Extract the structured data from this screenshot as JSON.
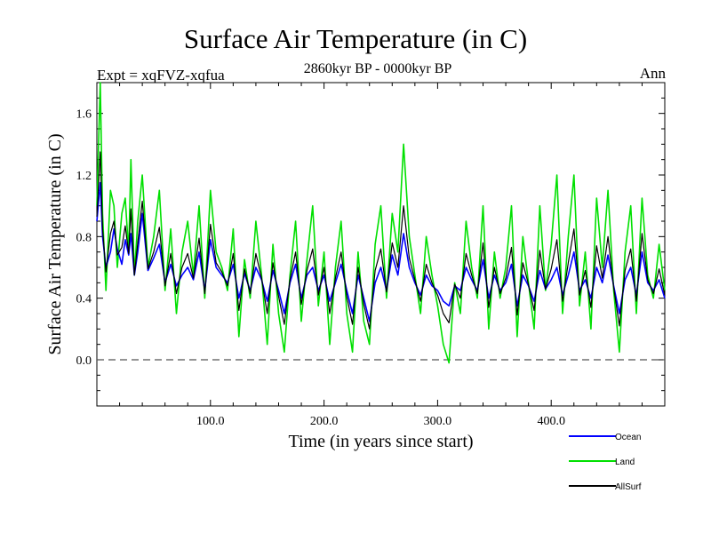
{
  "chart_data": {
    "type": "line",
    "title": "Surface Air Temperature (in C)",
    "subtitle": "2860kyr BP - 0000kyr BP",
    "experiment_label": "Expt = xqFVZ-xqfua",
    "season_label": "Ann",
    "xlabel": "Time (in years since start)",
    "ylabel": "Surface Air Temperature (in C)",
    "xlim": [
      0,
      500
    ],
    "ylim": [
      -0.3,
      1.8
    ],
    "x_ticks": [
      100,
      200,
      300,
      400
    ],
    "x_tick_labels": [
      "100.0",
      "200.0",
      "300.0",
      "400.0"
    ],
    "y_ticks": [
      0.0,
      0.4,
      0.8,
      1.2,
      1.6
    ],
    "y_tick_labels": [
      "0.0",
      "0.4",
      "0.8",
      "1.2",
      "1.6"
    ],
    "reference_line": 0.0,
    "series": [
      {
        "name": "Ocean",
        "color": "#0000ff",
        "x": [
          0,
          3,
          5,
          8,
          12,
          15,
          18,
          22,
          25,
          28,
          30,
          33,
          36,
          40,
          45,
          50,
          55,
          60,
          65,
          70,
          75,
          80,
          85,
          90,
          95,
          100,
          105,
          110,
          115,
          120,
          125,
          130,
          135,
          140,
          145,
          150,
          155,
          160,
          165,
          170,
          175,
          180,
          185,
          190,
          195,
          200,
          205,
          210,
          215,
          220,
          225,
          230,
          235,
          240,
          245,
          250,
          255,
          260,
          265,
          270,
          275,
          280,
          285,
          290,
          295,
          300,
          305,
          310,
          315,
          320,
          325,
          330,
          335,
          340,
          345,
          350,
          355,
          360,
          365,
          370,
          375,
          380,
          385,
          390,
          395,
          400,
          405,
          410,
          415,
          420,
          425,
          430,
          435,
          440,
          445,
          450,
          455,
          460,
          465,
          470,
          475,
          480,
          485,
          490,
          495,
          500
        ],
        "y": [
          0.9,
          1.15,
          0.8,
          0.6,
          0.7,
          0.85,
          0.72,
          0.62,
          0.78,
          0.68,
          0.82,
          0.55,
          0.7,
          0.95,
          0.58,
          0.66,
          0.75,
          0.5,
          0.62,
          0.48,
          0.55,
          0.6,
          0.52,
          0.7,
          0.45,
          0.78,
          0.6,
          0.55,
          0.5,
          0.62,
          0.4,
          0.56,
          0.45,
          0.6,
          0.52,
          0.38,
          0.58,
          0.45,
          0.3,
          0.5,
          0.62,
          0.4,
          0.55,
          0.6,
          0.45,
          0.55,
          0.38,
          0.5,
          0.62,
          0.45,
          0.3,
          0.55,
          0.4,
          0.25,
          0.5,
          0.6,
          0.45,
          0.68,
          0.55,
          0.82,
          0.6,
          0.5,
          0.42,
          0.55,
          0.48,
          0.45,
          0.38,
          0.35,
          0.48,
          0.45,
          0.6,
          0.52,
          0.45,
          0.65,
          0.4,
          0.55,
          0.45,
          0.5,
          0.62,
          0.35,
          0.55,
          0.48,
          0.38,
          0.58,
          0.46,
          0.52,
          0.6,
          0.42,
          0.55,
          0.7,
          0.45,
          0.52,
          0.4,
          0.6,
          0.5,
          0.68,
          0.48,
          0.3,
          0.52,
          0.6,
          0.42,
          0.7,
          0.5,
          0.45,
          0.52,
          0.4
        ]
      },
      {
        "name": "Land",
        "color": "#00e000",
        "x": [
          0,
          3,
          5,
          8,
          12,
          15,
          18,
          22,
          25,
          28,
          30,
          33,
          36,
          40,
          45,
          50,
          55,
          60,
          65,
          70,
          75,
          80,
          85,
          90,
          95,
          100,
          105,
          110,
          115,
          120,
          125,
          130,
          135,
          140,
          145,
          150,
          155,
          160,
          165,
          170,
          175,
          180,
          185,
          190,
          195,
          200,
          205,
          210,
          215,
          220,
          225,
          230,
          235,
          240,
          245,
          250,
          255,
          260,
          265,
          270,
          275,
          280,
          285,
          290,
          295,
          300,
          305,
          310,
          315,
          320,
          325,
          330,
          335,
          340,
          345,
          350,
          355,
          360,
          365,
          370,
          375,
          380,
          385,
          390,
          395,
          400,
          405,
          410,
          415,
          420,
          425,
          430,
          435,
          440,
          445,
          450,
          455,
          460,
          465,
          470,
          475,
          480,
          485,
          490,
          495,
          500
        ],
        "y": [
          1.0,
          1.8,
          0.95,
          0.45,
          1.1,
          1.0,
          0.6,
          0.95,
          1.05,
          0.7,
          1.3,
          0.55,
          0.9,
          1.2,
          0.6,
          0.8,
          1.1,
          0.45,
          0.85,
          0.3,
          0.7,
          0.9,
          0.55,
          1.0,
          0.4,
          1.1,
          0.7,
          0.6,
          0.45,
          0.85,
          0.15,
          0.65,
          0.4,
          0.9,
          0.55,
          0.1,
          0.75,
          0.3,
          0.05,
          0.55,
          0.9,
          0.25,
          0.65,
          1.0,
          0.35,
          0.7,
          0.1,
          0.6,
          0.9,
          0.3,
          0.05,
          0.7,
          0.25,
          0.1,
          0.75,
          1.0,
          0.4,
          0.95,
          0.7,
          1.4,
          0.8,
          0.55,
          0.3,
          0.8,
          0.55,
          0.35,
          0.1,
          -0.02,
          0.5,
          0.3,
          0.9,
          0.6,
          0.4,
          1.0,
          0.2,
          0.7,
          0.4,
          0.6,
          1.0,
          0.15,
          0.8,
          0.5,
          0.2,
          1.0,
          0.45,
          0.75,
          1.2,
          0.3,
          0.8,
          1.2,
          0.35,
          0.7,
          0.2,
          1.05,
          0.6,
          1.1,
          0.45,
          0.05,
          0.7,
          1.0,
          0.3,
          1.05,
          0.55,
          0.4,
          0.75,
          0.45
        ]
      },
      {
        "name": "AllSurf",
        "color": "#000000",
        "x": [
          0,
          3,
          5,
          8,
          12,
          15,
          18,
          22,
          25,
          28,
          30,
          33,
          36,
          40,
          45,
          50,
          55,
          60,
          65,
          70,
          75,
          80,
          85,
          90,
          95,
          100,
          105,
          110,
          115,
          120,
          125,
          130,
          135,
          140,
          145,
          150,
          155,
          160,
          165,
          170,
          175,
          180,
          185,
          190,
          195,
          200,
          205,
          210,
          215,
          220,
          225,
          230,
          235,
          240,
          245,
          250,
          255,
          260,
          265,
          270,
          275,
          280,
          285,
          290,
          295,
          300,
          305,
          310,
          315,
          320,
          325,
          330,
          335,
          340,
          345,
          350,
          355,
          360,
          365,
          370,
          375,
          380,
          385,
          390,
          395,
          400,
          405,
          410,
          415,
          420,
          425,
          430,
          435,
          440,
          445,
          450,
          455,
          460,
          465,
          470,
          475,
          480,
          485,
          490,
          495,
          500
        ],
        "y": [
          0.93,
          1.35,
          0.85,
          0.57,
          0.82,
          0.9,
          0.68,
          0.73,
          0.87,
          0.69,
          0.98,
          0.55,
          0.76,
          1.03,
          0.59,
          0.7,
          0.86,
          0.48,
          0.69,
          0.43,
          0.6,
          0.69,
          0.53,
          0.79,
          0.43,
          0.88,
          0.63,
          0.57,
          0.48,
          0.69,
          0.32,
          0.59,
          0.43,
          0.69,
          0.53,
          0.3,
          0.63,
          0.41,
          0.23,
          0.52,
          0.7,
          0.36,
          0.58,
          0.72,
          0.42,
          0.6,
          0.3,
          0.53,
          0.7,
          0.41,
          0.23,
          0.6,
          0.36,
          0.2,
          0.58,
          0.72,
          0.44,
          0.76,
          0.6,
          1.0,
          0.66,
          0.52,
          0.38,
          0.62,
          0.5,
          0.42,
          0.3,
          0.24,
          0.49,
          0.4,
          0.69,
          0.55,
          0.43,
          0.76,
          0.34,
          0.6,
          0.43,
          0.53,
          0.73,
          0.29,
          0.63,
          0.49,
          0.32,
          0.71,
          0.46,
          0.59,
          0.78,
          0.38,
          0.63,
          0.85,
          0.42,
          0.58,
          0.34,
          0.74,
          0.53,
          0.8,
          0.47,
          0.22,
          0.58,
          0.72,
          0.38,
          0.82,
          0.52,
          0.43,
          0.59,
          0.42
        ]
      }
    ]
  }
}
